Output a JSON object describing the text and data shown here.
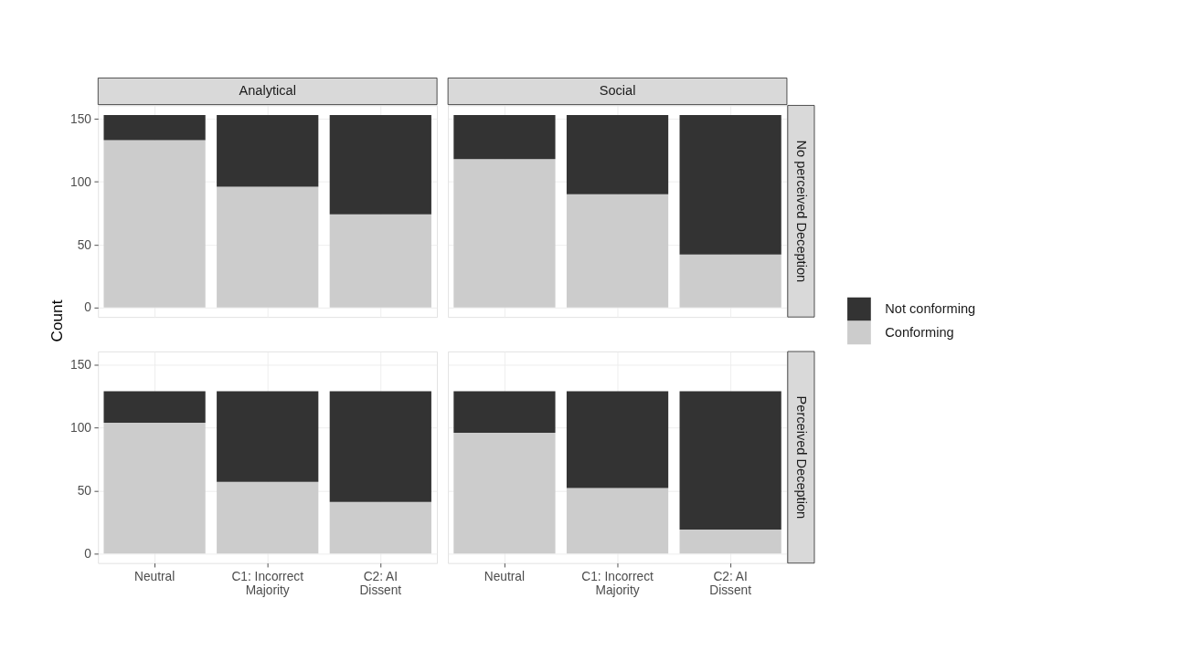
{
  "chart_data": [
    {
      "type": "bar",
      "title": "Analytical",
      "ylabel": "Count",
      "stacked": true,
      "categories": [
        "Neutral",
        "C1: Incorrect Majority",
        "C2: AI Dissent"
      ],
      "series": [
        {
          "name": "Conforming",
          "color": "#cccccc",
          "values": [
            133,
            96,
            74
          ]
        },
        {
          "name": "Not conforming",
          "color": "#333333",
          "values": [
            20,
            57,
            79
          ]
        }
      ],
      "ylim": [
        -7.65,
        160.65
      ],
      "yticks": [
        0,
        50,
        100,
        150
      ],
      "grid": true,
      "legend": "right",
      "tick_labels": "y"
    },
    {
      "type": "bar",
      "title": "Social",
      "y2label": "No perceived Deception",
      "stacked": true,
      "categories": [
        "Neutral",
        "C1: Incorrect Majority",
        "C2: AI Dissent"
      ],
      "series": [
        {
          "name": "Conforming",
          "color": "#cccccc",
          "values": [
            118,
            90,
            42
          ]
        },
        {
          "name": "Not conforming",
          "color": "#333333",
          "values": [
            35,
            63,
            111
          ]
        }
      ],
      "ylim": [
        -7.65,
        160.65
      ],
      "yticks": [
        0,
        50,
        100,
        150
      ],
      "grid": true,
      "legend": "right",
      "tick_labels": false
    },
    {
      "type": "bar",
      "stacked": true,
      "categories": [
        "Neutral",
        "C1: Incorrect Majority",
        "C2: AI Dissent"
      ],
      "series": [
        {
          "name": "Conforming",
          "color": "#cccccc",
          "values": [
            104,
            57,
            41
          ]
        },
        {
          "name": "Not conforming",
          "color": "#333333",
          "values": [
            25,
            72,
            88
          ]
        }
      ],
      "ylim": [
        -7.65,
        160.65
      ],
      "yticks": [
        0,
        50,
        100,
        150
      ],
      "grid": true,
      "legend": "right"
    },
    {
      "type": "bar",
      "y2label": "Perceived Deception",
      "stacked": true,
      "categories": [
        "Neutral",
        "C1: Incorrect Majority",
        "C2: AI Dissent"
      ],
      "series": [
        {
          "name": "Conforming",
          "color": "#cccccc",
          "values": [
            96,
            52,
            19
          ]
        },
        {
          "name": "Not conforming",
          "color": "#333333",
          "values": [
            33,
            77,
            110
          ]
        }
      ],
      "ylim": [
        -7.65,
        160.65
      ],
      "yticks": [
        0,
        50,
        100,
        150
      ],
      "grid": true,
      "legend": "right",
      "tick_labels": "x"
    }
  ]
}
